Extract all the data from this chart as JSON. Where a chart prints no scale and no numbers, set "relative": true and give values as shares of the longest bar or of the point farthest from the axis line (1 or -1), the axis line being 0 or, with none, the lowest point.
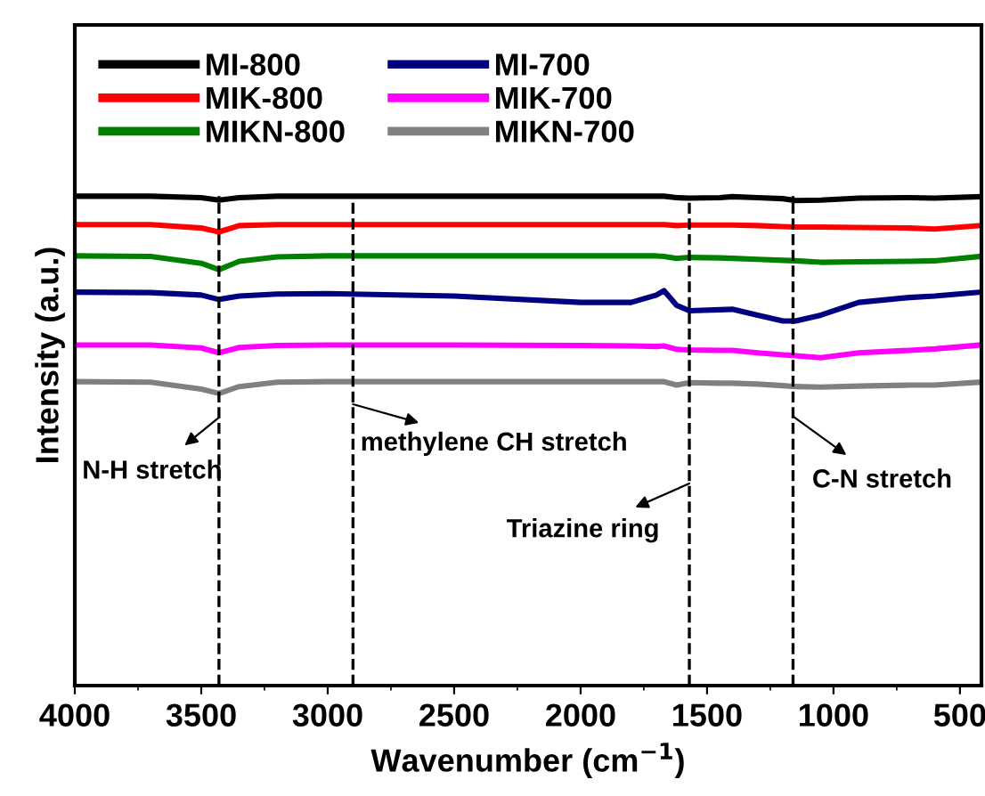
{
  "chart_data": {
    "type": "line",
    "relative": true,
    "xlabel": "Wavenumber (cm$^{−1}$)",
    "ylabel": "Intensity (a.u.)",
    "x": [
      4000,
      3700,
      3500,
      3430,
      3350,
      3200,
      3000,
      2500,
      2000,
      1800,
      1700,
      1670,
      1620,
      1570,
      1450,
      1400,
      1300,
      1200,
      1150,
      1050,
      900,
      700,
      600,
      420
    ],
    "xlim": [
      4000,
      415
    ],
    "xticks": [
      4000,
      3500,
      3000,
      2500,
      2000,
      1500,
      1000,
      500
    ],
    "legend": "top left",
    "grid": false,
    "line_style": "solid",
    "series": [
      {
        "name": "MI-800",
        "color": "#000000",
        "values": [
          1.0,
          1.0,
          0.997,
          0.992,
          0.997,
          1.0,
          1.0,
          1.0,
          1.0,
          1.0,
          1.0,
          1.0,
          0.997,
          0.996,
          0.997,
          0.999,
          0.997,
          0.995,
          0.991,
          0.992,
          0.996,
          0.997,
          0.996,
          0.999
        ]
      },
      {
        "name": "MIK-800",
        "color": "#ff0000",
        "values": [
          0.942,
          0.942,
          0.935,
          0.927,
          0.94,
          0.942,
          0.942,
          0.942,
          0.942,
          0.942,
          0.942,
          0.942,
          0.94,
          0.941,
          0.941,
          0.941,
          0.94,
          0.938,
          0.937,
          0.937,
          0.936,
          0.935,
          0.933,
          0.94
        ]
      },
      {
        "name": "MIKN-800",
        "color": "#008000",
        "values": [
          0.878,
          0.877,
          0.863,
          0.85,
          0.867,
          0.876,
          0.878,
          0.878,
          0.878,
          0.878,
          0.878,
          0.877,
          0.873,
          0.875,
          0.874,
          0.873,
          0.871,
          0.869,
          0.868,
          0.865,
          0.866,
          0.867,
          0.868,
          0.877
        ]
      },
      {
        "name": "MI-700",
        "color": "#000080",
        "values": [
          0.804,
          0.803,
          0.798,
          0.789,
          0.796,
          0.8,
          0.801,
          0.796,
          0.783,
          0.783,
          0.798,
          0.807,
          0.777,
          0.766,
          0.768,
          0.769,
          0.757,
          0.745,
          0.745,
          0.757,
          0.783,
          0.793,
          0.796,
          0.804
        ]
      },
      {
        "name": "MIK-700",
        "color": "#ff00ff",
        "values": [
          0.696,
          0.696,
          0.69,
          0.68,
          0.691,
          0.695,
          0.696,
          0.696,
          0.695,
          0.694,
          0.693,
          0.694,
          0.687,
          0.686,
          0.685,
          0.685,
          0.68,
          0.676,
          0.674,
          0.67,
          0.68,
          0.685,
          0.688,
          0.696
        ]
      },
      {
        "name": "MIKN-700",
        "color": "#808080",
        "values": [
          0.621,
          0.62,
          0.606,
          0.597,
          0.611,
          0.62,
          0.621,
          0.621,
          0.621,
          0.621,
          0.621,
          0.621,
          0.614,
          0.619,
          0.618,
          0.618,
          0.616,
          0.613,
          0.611,
          0.61,
          0.612,
          0.614,
          0.614,
          0.62
        ]
      }
    ],
    "ref_lines": [
      {
        "axis": "x",
        "value": 3430,
        "label": "N-H stretch",
        "color": "#000000",
        "line_style": "dashed"
      },
      {
        "axis": "x",
        "value": 2900,
        "label": "methylene CH stretch",
        "color": "#000000",
        "line_style": "dashed"
      },
      {
        "axis": "x",
        "value": 1570,
        "label": "Triazine ring",
        "color": "#000000",
        "line_style": "dashed"
      },
      {
        "axis": "x",
        "value": 1160,
        "label": "C-N stretch",
        "color": "#000000",
        "line_style": "dashed"
      }
    ]
  }
}
